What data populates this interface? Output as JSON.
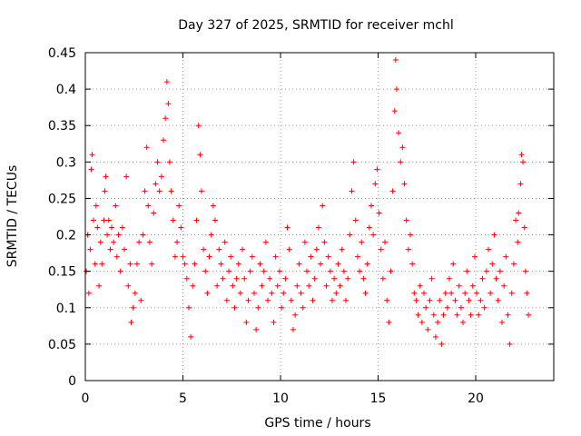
{
  "chart_data": {
    "type": "scatter",
    "title": "Day 327 of 2025, SRMTID for receiver mchl",
    "xlabel": "GPS time / hours",
    "ylabel": "SRMTID / TECUs",
    "xlim": [
      0,
      24
    ],
    "ylim": [
      0,
      0.45
    ],
    "xticks": [
      0,
      5,
      10,
      15,
      20
    ],
    "xtick_labels": [
      "0",
      "5",
      "10",
      "15",
      "20"
    ],
    "yticks": [
      0,
      0.05,
      0.1,
      0.15,
      0.2,
      0.25,
      0.3,
      0.35,
      0.4,
      0.45
    ],
    "ytick_labels": [
      "0",
      "0.05",
      "0.1",
      "0.15",
      "0.2",
      "0.25",
      "0.3",
      "0.35",
      "0.4",
      "0.45"
    ],
    "grid": true,
    "marker": "+",
    "colors": {
      "points": "#ff0000",
      "grid": "#a0a0a0",
      "axes": "#000000"
    },
    "series": [
      {
        "name": "SRMTID",
        "points": [
          [
            0.05,
            0.15
          ],
          [
            0.12,
            0.2
          ],
          [
            0.18,
            0.12
          ],
          [
            0.25,
            0.18
          ],
          [
            0.3,
            0.29
          ],
          [
            0.35,
            0.31
          ],
          [
            0.42,
            0.22
          ],
          [
            0.5,
            0.16
          ],
          [
            0.55,
            0.24
          ],
          [
            0.62,
            0.21
          ],
          [
            0.7,
            0.13
          ],
          [
            0.78,
            0.19
          ],
          [
            0.85,
            0.16
          ],
          [
            0.95,
            0.22
          ],
          [
            1.0,
            0.26
          ],
          [
            1.05,
            0.28
          ],
          [
            1.12,
            0.2
          ],
          [
            1.2,
            0.22
          ],
          [
            1.28,
            0.18
          ],
          [
            1.35,
            0.21
          ],
          [
            1.45,
            0.19
          ],
          [
            1.55,
            0.24
          ],
          [
            1.62,
            0.17
          ],
          [
            1.7,
            0.2
          ],
          [
            1.8,
            0.15
          ],
          [
            1.9,
            0.21
          ],
          [
            2.0,
            0.18
          ],
          [
            2.1,
            0.28
          ],
          [
            2.2,
            0.13
          ],
          [
            2.3,
            0.16
          ],
          [
            2.35,
            0.08
          ],
          [
            2.45,
            0.1
          ],
          [
            2.55,
            0.12
          ],
          [
            2.65,
            0.16
          ],
          [
            2.75,
            0.19
          ],
          [
            2.85,
            0.11
          ],
          [
            2.95,
            0.2
          ],
          [
            3.05,
            0.26
          ],
          [
            3.15,
            0.32
          ],
          [
            3.22,
            0.24
          ],
          [
            3.3,
            0.19
          ],
          [
            3.4,
            0.16
          ],
          [
            3.5,
            0.23
          ],
          [
            3.6,
            0.27
          ],
          [
            3.7,
            0.3
          ],
          [
            3.8,
            0.26
          ],
          [
            3.9,
            0.28
          ],
          [
            4.0,
            0.33
          ],
          [
            4.1,
            0.36
          ],
          [
            4.18,
            0.41
          ],
          [
            4.25,
            0.38
          ],
          [
            4.32,
            0.3
          ],
          [
            4.4,
            0.26
          ],
          [
            4.5,
            0.22
          ],
          [
            4.6,
            0.17
          ],
          [
            4.7,
            0.19
          ],
          [
            4.8,
            0.24
          ],
          [
            4.9,
            0.21
          ],
          [
            5.0,
            0.17
          ],
          [
            5.1,
            0.16
          ],
          [
            5.2,
            0.14
          ],
          [
            5.3,
            0.1
          ],
          [
            5.4,
            0.06
          ],
          [
            5.5,
            0.13
          ],
          [
            5.6,
            0.16
          ],
          [
            5.7,
            0.22
          ],
          [
            5.8,
            0.35
          ],
          [
            5.88,
            0.31
          ],
          [
            5.95,
            0.26
          ],
          [
            6.05,
            0.18
          ],
          [
            6.15,
            0.15
          ],
          [
            6.25,
            0.12
          ],
          [
            6.35,
            0.17
          ],
          [
            6.45,
            0.2
          ],
          [
            6.55,
            0.24
          ],
          [
            6.65,
            0.22
          ],
          [
            6.75,
            0.13
          ],
          [
            6.85,
            0.18
          ],
          [
            6.95,
            0.16
          ],
          [
            7.05,
            0.14
          ],
          [
            7.15,
            0.19
          ],
          [
            7.25,
            0.11
          ],
          [
            7.35,
            0.15
          ],
          [
            7.45,
            0.17
          ],
          [
            7.55,
            0.13
          ],
          [
            7.65,
            0.1
          ],
          [
            7.75,
            0.14
          ],
          [
            7.85,
            0.16
          ],
          [
            7.95,
            0.12
          ],
          [
            8.05,
            0.18
          ],
          [
            8.15,
            0.14
          ],
          [
            8.25,
            0.08
          ],
          [
            8.35,
            0.11
          ],
          [
            8.45,
            0.15
          ],
          [
            8.55,
            0.17
          ],
          [
            8.65,
            0.12
          ],
          [
            8.75,
            0.07
          ],
          [
            8.85,
            0.1
          ],
          [
            8.95,
            0.16
          ],
          [
            9.05,
            0.13
          ],
          [
            9.15,
            0.15
          ],
          [
            9.25,
            0.19
          ],
          [
            9.35,
            0.11
          ],
          [
            9.45,
            0.14
          ],
          [
            9.55,
            0.12
          ],
          [
            9.65,
            0.08
          ],
          [
            9.75,
            0.17
          ],
          [
            9.85,
            0.13
          ],
          [
            9.95,
            0.15
          ],
          [
            10.05,
            0.1
          ],
          [
            10.15,
            0.12
          ],
          [
            10.25,
            0.14
          ],
          [
            10.35,
            0.21
          ],
          [
            10.45,
            0.18
          ],
          [
            10.55,
            0.11
          ],
          [
            10.65,
            0.07
          ],
          [
            10.75,
            0.09
          ],
          [
            10.85,
            0.13
          ],
          [
            10.95,
            0.16
          ],
          [
            11.05,
            0.12
          ],
          [
            11.15,
            0.1
          ],
          [
            11.25,
            0.19
          ],
          [
            11.35,
            0.15
          ],
          [
            11.45,
            0.13
          ],
          [
            11.55,
            0.17
          ],
          [
            11.65,
            0.11
          ],
          [
            11.75,
            0.14
          ],
          [
            11.85,
            0.18
          ],
          [
            11.95,
            0.21
          ],
          [
            12.05,
            0.16
          ],
          [
            12.15,
            0.24
          ],
          [
            12.25,
            0.19
          ],
          [
            12.35,
            0.13
          ],
          [
            12.45,
            0.17
          ],
          [
            12.55,
            0.15
          ],
          [
            12.65,
            0.11
          ],
          [
            12.75,
            0.14
          ],
          [
            12.85,
            0.12
          ],
          [
            12.95,
            0.16
          ],
          [
            13.05,
            0.13
          ],
          [
            13.15,
            0.18
          ],
          [
            13.25,
            0.15
          ],
          [
            13.35,
            0.11
          ],
          [
            13.45,
            0.14
          ],
          [
            13.55,
            0.2
          ],
          [
            13.65,
            0.26
          ],
          [
            13.75,
            0.3
          ],
          [
            13.85,
            0.22
          ],
          [
            13.95,
            0.17
          ],
          [
            14.05,
            0.15
          ],
          [
            14.15,
            0.19
          ],
          [
            14.25,
            0.14
          ],
          [
            14.35,
            0.12
          ],
          [
            14.45,
            0.16
          ],
          [
            14.55,
            0.21
          ],
          [
            14.65,
            0.24
          ],
          [
            14.75,
            0.2
          ],
          [
            14.85,
            0.27
          ],
          [
            14.95,
            0.29
          ],
          [
            15.05,
            0.23
          ],
          [
            15.15,
            0.18
          ],
          [
            15.25,
            0.14
          ],
          [
            15.35,
            0.19
          ],
          [
            15.45,
            0.11
          ],
          [
            15.55,
            0.08
          ],
          [
            15.65,
            0.15
          ],
          [
            15.75,
            0.26
          ],
          [
            15.85,
            0.37
          ],
          [
            15.9,
            0.44
          ],
          [
            15.95,
            0.4
          ],
          [
            16.05,
            0.34
          ],
          [
            16.15,
            0.3
          ],
          [
            16.25,
            0.32
          ],
          [
            16.35,
            0.27
          ],
          [
            16.45,
            0.22
          ],
          [
            16.55,
            0.18
          ],
          [
            16.65,
            0.2
          ],
          [
            16.75,
            0.16
          ],
          [
            16.85,
            0.12
          ],
          [
            16.95,
            0.11
          ],
          [
            17.05,
            0.09
          ],
          [
            17.15,
            0.13
          ],
          [
            17.25,
            0.08
          ],
          [
            17.35,
            0.12
          ],
          [
            17.45,
            0.1
          ],
          [
            17.55,
            0.07
          ],
          [
            17.65,
            0.11
          ],
          [
            17.75,
            0.14
          ],
          [
            17.85,
            0.09
          ],
          [
            17.95,
            0.06
          ],
          [
            18.05,
            0.08
          ],
          [
            18.15,
            0.11
          ],
          [
            18.25,
            0.05
          ],
          [
            18.35,
            0.09
          ],
          [
            18.45,
            0.12
          ],
          [
            18.55,
            0.1
          ],
          [
            18.65,
            0.14
          ],
          [
            18.75,
            0.12
          ],
          [
            18.85,
            0.16
          ],
          [
            18.95,
            0.11
          ],
          [
            19.05,
            0.09
          ],
          [
            19.15,
            0.13
          ],
          [
            19.25,
            0.1
          ],
          [
            19.35,
            0.08
          ],
          [
            19.45,
            0.12
          ],
          [
            19.55,
            0.15
          ],
          [
            19.65,
            0.11
          ],
          [
            19.75,
            0.09
          ],
          [
            19.85,
            0.13
          ],
          [
            19.95,
            0.17
          ],
          [
            20.05,
            0.12
          ],
          [
            20.15,
            0.09
          ],
          [
            20.25,
            0.11
          ],
          [
            20.35,
            0.14
          ],
          [
            20.45,
            0.1
          ],
          [
            20.55,
            0.15
          ],
          [
            20.65,
            0.18
          ],
          [
            20.75,
            0.12
          ],
          [
            20.85,
            0.16
          ],
          [
            20.95,
            0.2
          ],
          [
            21.05,
            0.14
          ],
          [
            21.15,
            0.11
          ],
          [
            21.25,
            0.15
          ],
          [
            21.35,
            0.08
          ],
          [
            21.45,
            0.13
          ],
          [
            21.55,
            0.17
          ],
          [
            21.65,
            0.09
          ],
          [
            21.75,
            0.05
          ],
          [
            21.85,
            0.12
          ],
          [
            21.95,
            0.16
          ],
          [
            22.05,
            0.22
          ],
          [
            22.15,
            0.19
          ],
          [
            22.2,
            0.23
          ],
          [
            22.3,
            0.27
          ],
          [
            22.35,
            0.31
          ],
          [
            22.42,
            0.3
          ],
          [
            22.5,
            0.21
          ],
          [
            22.55,
            0.15
          ],
          [
            22.62,
            0.12
          ],
          [
            22.7,
            0.09
          ]
        ]
      }
    ]
  }
}
